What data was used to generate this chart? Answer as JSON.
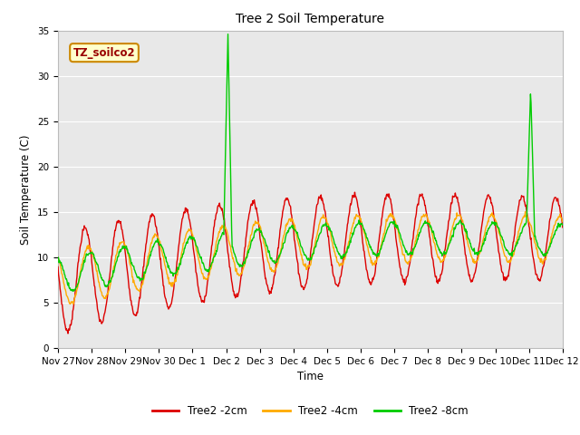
{
  "title": "Tree 2 Soil Temperature",
  "xlabel": "Time",
  "ylabel": "Soil Temperature (C)",
  "ylim": [
    0,
    35
  ],
  "yticks": [
    0,
    5,
    10,
    15,
    20,
    25,
    30,
    35
  ],
  "background_color": "#ffffff",
  "plot_bg_color": "#e8e8e8",
  "grid_color": "#ffffff",
  "annotation_text": "TZ_soilco2",
  "annotation_bg": "#ffffcc",
  "annotation_edge": "#cc8800",
  "legend_labels": [
    "Tree2 -2cm",
    "Tree2 -4cm",
    "Tree2 -8cm"
  ],
  "colors": [
    "#dd0000",
    "#ffaa00",
    "#00cc00"
  ],
  "line_width": 1.0,
  "xtick_labels": [
    "Nov 27",
    "Nov 28",
    "Nov 29",
    "Nov 30",
    "Dec 1",
    "Dec 2",
    "Dec 3",
    "Dec 4",
    "Dec 5",
    "Dec 6",
    "Dec 7",
    "Dec 8",
    "Dec 9",
    "Dec 10",
    "Dec 11",
    "Dec 12"
  ],
  "n_points": 960
}
